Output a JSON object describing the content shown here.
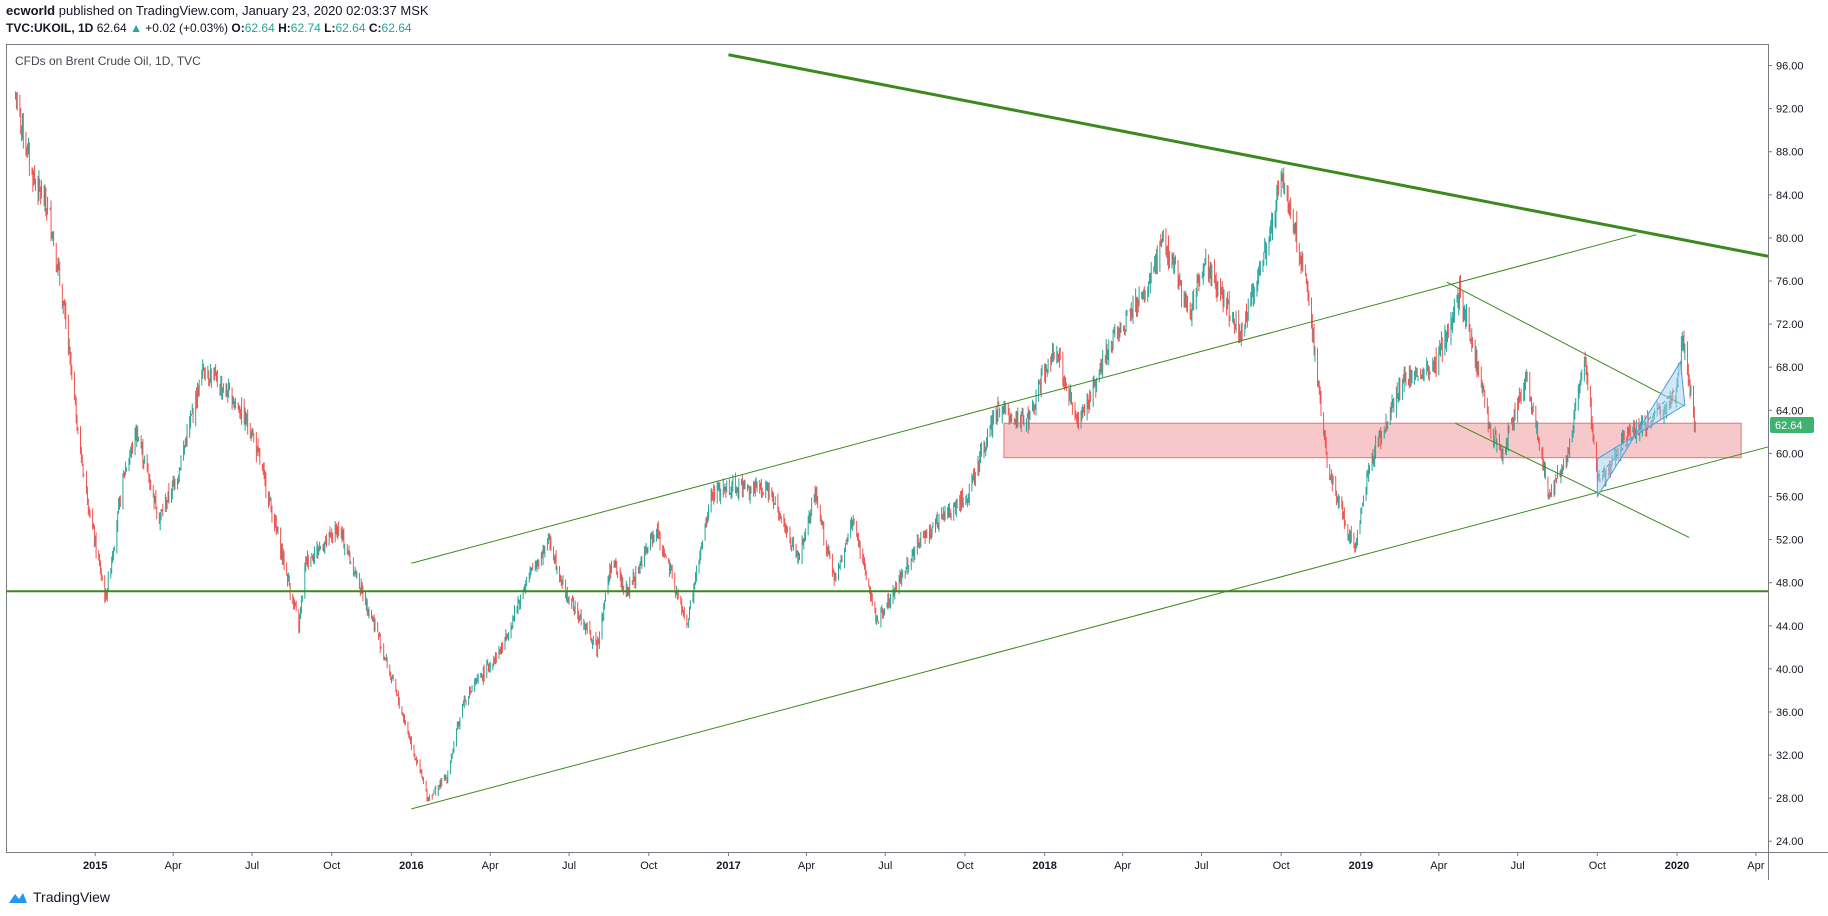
{
  "header": {
    "publisher": "ecworld",
    "published_text": "published on TradingView.com, January 23, 2020 02:03:37 MSK",
    "symbol": "TVC:UKOIL, 1D",
    "last": "62.64",
    "change": "+0.02 (+0.03%)",
    "open_label": "O:",
    "open": "62.64",
    "high_label": "H:",
    "high": "62.74",
    "low_label": "L:",
    "low": "62.64",
    "close_label": "C:",
    "close": "62.64"
  },
  "footer": {
    "brand": "TradingView"
  },
  "colors": {
    "up": "#26a69a",
    "down": "#ef5350",
    "trendline": "#3c8a1e",
    "zone_fill": "#f4b6b8",
    "zone_border": "#e57373",
    "channel_fill": "#a8d4f0",
    "channel_border": "#4a9fd8",
    "price_tag": "#3cb371"
  },
  "chart_data": {
    "type": "candlestick",
    "title": "CFDs on Brent Crude Oil, 1D, TVC",
    "current_price_label": "62.64",
    "y_ticks": [
      "96.00",
      "92.00",
      "88.00",
      "84.00",
      "80.00",
      "76.00",
      "72.00",
      "68.00",
      "64.00",
      "60.00",
      "56.00",
      "52.00",
      "48.00",
      "44.00",
      "40.00",
      "36.00",
      "32.00",
      "28.00",
      "24.00"
    ],
    "x_ticks": [
      "2015",
      "Apr",
      "Jul",
      "Oct",
      "2016",
      "Apr",
      "Jul",
      "Oct",
      "2017",
      "Apr",
      "Jul",
      "Oct",
      "2018",
      "Apr",
      "Jul",
      "Oct",
      "2019",
      "Apr",
      "Jul",
      "Oct",
      "2020",
      "Apr"
    ],
    "x_tick_bold": [
      "2015",
      "2016",
      "2017",
      "2018",
      "2019",
      "2020"
    ],
    "ylim": [
      23,
      98
    ],
    "xlim": [
      "2014-09-20",
      "2020-04-15"
    ],
    "series": [
      {
        "name": "UKOIL",
        "points": [
          [
            "2014-10-01",
            93
          ],
          [
            "2014-10-20",
            86
          ],
          [
            "2014-11-10",
            82
          ],
          [
            "2014-11-28",
            72
          ],
          [
            "2014-12-15",
            60
          ],
          [
            "2014-12-31",
            52
          ],
          [
            "2015-01-13",
            46.5
          ],
          [
            "2015-02-03",
            58
          ],
          [
            "2015-02-18",
            62
          ],
          [
            "2015-03-16",
            54
          ],
          [
            "2015-04-06",
            58
          ],
          [
            "2015-05-06",
            68
          ],
          [
            "2015-06-10",
            65
          ],
          [
            "2015-07-01",
            62
          ],
          [
            "2015-07-20",
            56
          ],
          [
            "2015-08-24",
            44
          ],
          [
            "2015-09-01",
            50
          ],
          [
            "2015-10-09",
            53
          ],
          [
            "2015-11-20",
            44
          ],
          [
            "2015-12-21",
            36
          ],
          [
            "2016-01-20",
            28
          ],
          [
            "2016-02-11",
            30
          ],
          [
            "2016-03-01",
            37
          ],
          [
            "2016-04-15",
            42
          ],
          [
            "2016-05-12",
            48
          ],
          [
            "2016-06-08",
            52
          ],
          [
            "2016-06-27",
            47
          ],
          [
            "2016-08-02",
            42
          ],
          [
            "2016-08-19",
            50
          ],
          [
            "2016-09-06",
            47
          ],
          [
            "2016-10-10",
            53
          ],
          [
            "2016-11-14",
            44
          ],
          [
            "2016-12-12",
            56
          ],
          [
            "2017-01-05",
            57
          ],
          [
            "2017-02-20",
            56.5
          ],
          [
            "2017-03-22",
            50
          ],
          [
            "2017-04-11",
            56
          ],
          [
            "2017-05-04",
            48
          ],
          [
            "2017-05-25",
            54
          ],
          [
            "2017-06-21",
            44.5
          ],
          [
            "2017-07-10",
            47
          ],
          [
            "2017-08-10",
            52
          ],
          [
            "2017-09-05",
            54
          ],
          [
            "2017-10-04",
            56
          ],
          [
            "2017-11-07",
            64
          ],
          [
            "2017-12-12",
            63
          ],
          [
            "2018-01-12",
            70
          ],
          [
            "2018-02-09",
            62.5
          ],
          [
            "2018-03-22",
            71
          ],
          [
            "2018-04-30",
            75
          ],
          [
            "2018-05-17",
            80
          ],
          [
            "2018-06-18",
            73
          ],
          [
            "2018-07-05",
            78
          ],
          [
            "2018-08-15",
            71
          ],
          [
            "2018-09-10",
            78
          ],
          [
            "2018-10-03",
            86
          ],
          [
            "2018-10-30",
            76
          ],
          [
            "2018-11-23",
            59
          ],
          [
            "2018-12-24",
            51
          ],
          [
            "2019-01-15",
            60
          ],
          [
            "2019-02-20",
            67
          ],
          [
            "2019-03-28",
            68
          ],
          [
            "2019-04-25",
            75
          ],
          [
            "2019-05-10",
            70
          ],
          [
            "2019-05-31",
            62
          ],
          [
            "2019-06-13",
            60
          ],
          [
            "2019-07-11",
            67
          ],
          [
            "2019-08-07",
            56
          ],
          [
            "2019-08-28",
            60
          ],
          [
            "2019-09-16",
            69
          ],
          [
            "2019-10-03",
            57
          ],
          [
            "2019-11-06",
            62
          ],
          [
            "2019-12-05",
            63
          ],
          [
            "2019-12-31",
            66
          ],
          [
            "2020-01-08",
            71
          ],
          [
            "2020-01-22",
            62.64
          ]
        ]
      }
    ],
    "drawings": [
      {
        "type": "trendline",
        "width": 3,
        "from": [
          "2017-01-01",
          97
        ],
        "to": [
          "2020-04-15",
          78.3
        ]
      },
      {
        "type": "trendline",
        "width": 2,
        "from": [
          "2014-09-20",
          47.2
        ],
        "to": [
          "2020-04-15",
          47.2
        ]
      },
      {
        "type": "trendline",
        "width": 1,
        "from": [
          "2016-01-01",
          49.8
        ],
        "to": [
          "2019-11-15",
          80.3
        ]
      },
      {
        "type": "trendline",
        "width": 1,
        "from": [
          "2016-01-01",
          27
        ],
        "to": [
          "2020-04-15",
          60.6
        ]
      },
      {
        "type": "trendline",
        "width": 1,
        "from": [
          "2019-04-10",
          75.9
        ],
        "to": [
          "2020-01-10",
          64.4
        ]
      },
      {
        "type": "trendline",
        "width": 1,
        "from": [
          "2019-04-20",
          62.8
        ],
        "to": [
          "2020-01-15",
          52.2
        ]
      },
      {
        "type": "rectangle",
        "from": [
          "2017-11-15",
          62.8
        ],
        "to": [
          "2020-03-15",
          59.6
        ]
      },
      {
        "type": "channel",
        "points": [
          [
            "2019-10-01",
            56
          ],
          [
            "2020-01-05",
            68.5
          ],
          [
            "2020-01-10",
            64.5
          ],
          [
            "2019-10-01",
            59.5
          ]
        ]
      }
    ]
  }
}
